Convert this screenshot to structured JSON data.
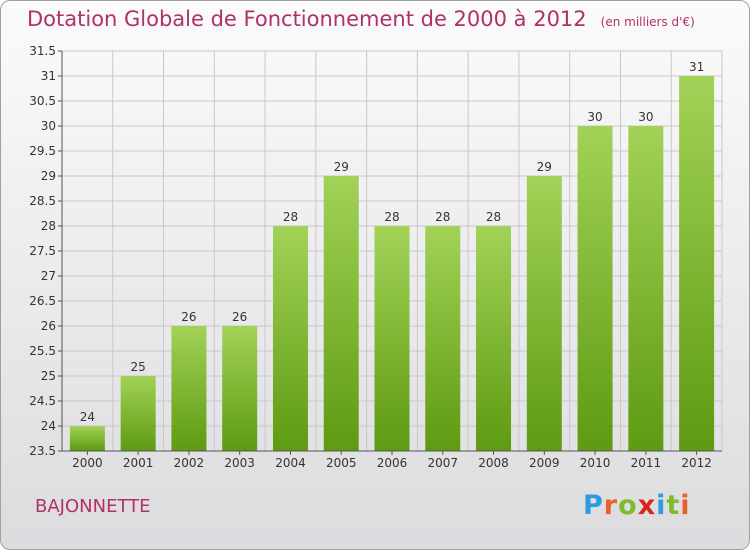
{
  "header": {
    "title": "Dotation Globale de Fonctionnement de 2000 à 2012",
    "unit_note": "(en milliers d'€)"
  },
  "footer": {
    "commune": "BAJONNETTE",
    "logo_text": [
      "P",
      "r",
      "o",
      "x",
      "i",
      "t",
      "i"
    ],
    "logo_colors": [
      "#2e9be0",
      "#e8612c",
      "#7dbb2a",
      "#d9261c",
      "#2e9be0",
      "#7dbb2a",
      "#e8612c"
    ]
  },
  "colors": {
    "title": "#b0306a",
    "bar_light": "#a2d257",
    "bar_dark": "#5e9a12",
    "grid": "#c8c8c8",
    "axis": "#555555"
  },
  "chart_data": {
    "type": "bar",
    "title": "Dotation Globale de Fonctionnement de 2000 à 2012",
    "subtitle": "(en milliers d'€)",
    "xlabel": "",
    "ylabel": "",
    "categories": [
      "2000",
      "2001",
      "2002",
      "2003",
      "2004",
      "2005",
      "2006",
      "2007",
      "2008",
      "2009",
      "2010",
      "2011",
      "2012"
    ],
    "values": [
      24,
      25,
      26,
      26,
      28,
      29,
      28,
      28,
      28,
      29,
      30,
      30,
      31
    ],
    "data_labels": [
      "24",
      "25",
      "26",
      "26",
      "28",
      "29",
      "28",
      "28",
      "28",
      "29",
      "30",
      "30",
      "31"
    ],
    "ylim": [
      23.5,
      31.5
    ],
    "yticks": [
      23.5,
      24,
      24.5,
      25,
      25.5,
      26,
      26.5,
      27,
      27.5,
      28,
      28.5,
      29,
      29.5,
      30,
      30.5,
      31,
      31.5
    ],
    "ytick_labels": [
      "23.5",
      "24",
      "24.5",
      "25",
      "25.5",
      "26",
      "26.5",
      "27",
      "27.5",
      "28",
      "28.5",
      "29",
      "29.5",
      "30",
      "30.5",
      "31",
      "31.5"
    ],
    "grid": true
  }
}
